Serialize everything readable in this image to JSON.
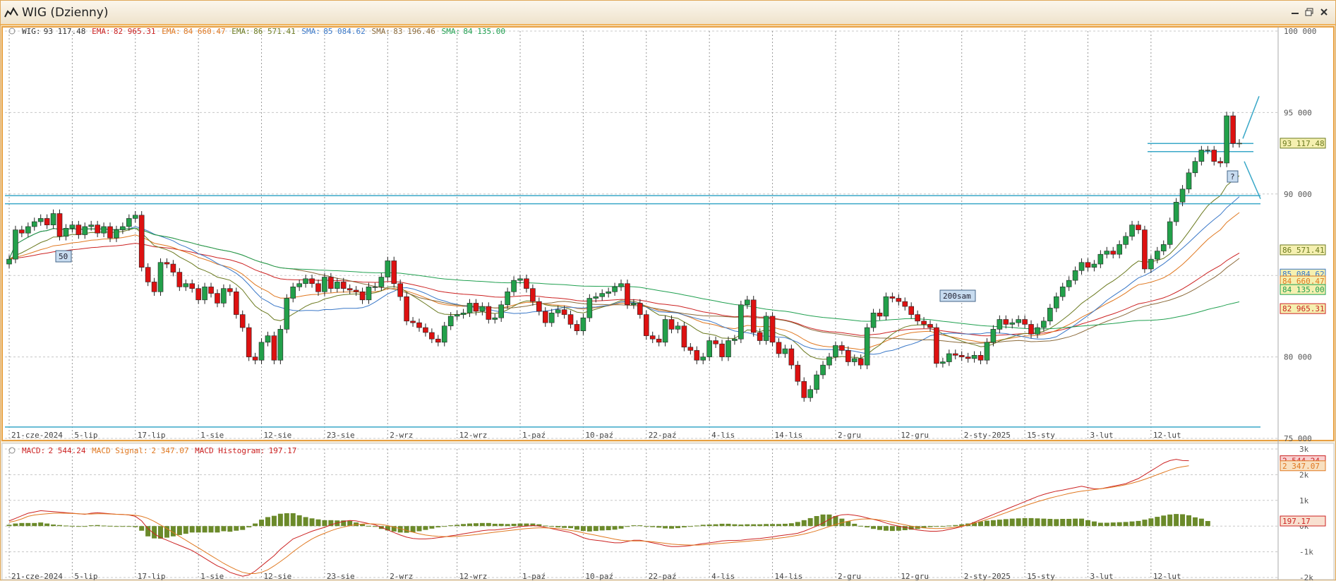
{
  "window": {
    "title": "WIG (Dzienny)",
    "buttons": [
      "minimize",
      "restore",
      "close"
    ]
  },
  "price_legend": [
    {
      "label": "WIG:",
      "value": "93 117.48",
      "color": "#333333"
    },
    {
      "label": "EMA:",
      "value": "82 965.31",
      "color": "#cc2222"
    },
    {
      "label": "EMA:",
      "value": "84 660.47",
      "color": "#e07820"
    },
    {
      "label": "EMA:",
      "value": "86 571.41",
      "color": "#6b7a20"
    },
    {
      "label": "SMA:",
      "value": "85 084.62",
      "color": "#3a78c8"
    },
    {
      "label": "SMA:",
      "value": "83 196.46",
      "color": "#8b6a3a"
    },
    {
      "label": "SMA:",
      "value": "84 135.00",
      "color": "#20a050"
    }
  ],
  "macd_legend": [
    {
      "label": "MACD:",
      "value": "2 544.24",
      "color": "#cc2222"
    },
    {
      "label": "MACD Signal:",
      "value": "2 347.07",
      "color": "#e07820"
    },
    {
      "label": "MACD Histogram:",
      "value": "197.17",
      "color": "#cc2222"
    }
  ],
  "annotations": {
    "sma50_label": "50",
    "sma200_label": "200sam",
    "question_label": "?"
  },
  "price_badges": [
    {
      "text": "93 117.48",
      "value": 93117.48,
      "color": "#6b7a20",
      "bg": "#f5f0b0"
    },
    {
      "text": "86 571.41",
      "value": 86571.41,
      "color": "#6b7a20",
      "bg": "#f5f0b0"
    },
    {
      "text": "85 084.62",
      "value": 85084.62,
      "color": "#3a78c8",
      "bg": "#f5f0b0"
    },
    {
      "text": "84 660.47",
      "value": 84660.47,
      "color": "#e07820",
      "bg": "#f5f0b0"
    },
    {
      "text": "84 135.00",
      "value": 84135.0,
      "color": "#20a050",
      "bg": "#f5f0b0"
    },
    {
      "text": "82 965.31",
      "value": 82965.31,
      "color": "#cc2222",
      "bg": "#f5f0b0"
    }
  ],
  "macd_badges": [
    {
      "text": "2 544.24",
      "value": 2544.24,
      "color": "#cc2222",
      "bg": "#f8d0d0"
    },
    {
      "text": "2 347.07",
      "value": 2347.07,
      "color": "#e07820",
      "bg": "#f8e0c0"
    },
    {
      "text": "197.17",
      "value": 197.17,
      "color": "#cc2222",
      "bg": "#f8e0d0"
    }
  ],
  "chart_data": {
    "type": "candlestick",
    "title": "WIG (Dzienny)",
    "x_tick_labels": [
      "21-cze-2024",
      "5-lip",
      "17-lip",
      "1-sie",
      "12-sie",
      "23-sie",
      "2-wrz",
      "12-wrz",
      "1-paź",
      "10-paź",
      "22-paź",
      "4-lis",
      "14-lis",
      "2-gru",
      "12-gru",
      "2-sty-2025",
      "15-sty",
      "3-lut",
      "12-lut"
    ],
    "price_axis": {
      "ylim": [
        75000,
        100000
      ],
      "ticks": [
        75000,
        80000,
        85000,
        90000,
        95000,
        100000
      ],
      "tick_labels": [
        "75 000",
        "80 000",
        "85 000",
        "90 000",
        "95 000",
        "100 000"
      ]
    },
    "macd_axis": {
      "ylim": [
        -2000,
        3000
      ],
      "ticks": [
        -2000,
        -1000,
        0,
        1000,
        2000,
        3000
      ],
      "tick_labels": [
        "-2k",
        "-1k",
        "0k",
        "1k",
        "2k",
        "3k"
      ]
    },
    "close": [
      86000,
      87800,
      87600,
      88000,
      88300,
      88500,
      88100,
      88800,
      87400,
      87900,
      88100,
      87500,
      88000,
      88100,
      87600,
      88000,
      87300,
      87800,
      88000,
      88500,
      88700,
      85500,
      84600,
      84000,
      85800,
      85700,
      85200,
      84300,
      84500,
      84200,
      83500,
      84300,
      83900,
      83300,
      84200,
      84000,
      82600,
      81800,
      80000,
      79800,
      80900,
      81300,
      79800,
      81700,
      83600,
      84300,
      84500,
      84800,
      84500,
      84000,
      84900,
      84200,
      84600,
      84200,
      84100,
      84000,
      83500,
      84300,
      84300,
      84900,
      85900,
      84500,
      83700,
      82200,
      82100,
      81800,
      81500,
      81100,
      80900,
      81900,
      82500,
      82600,
      82700,
      83300,
      82800,
      83100,
      82300,
      82400,
      83200,
      84000,
      84700,
      84800,
      84200,
      83400,
      82800,
      82100,
      82700,
      82900,
      82600,
      82000,
      81600,
      82400,
      83600,
      83700,
      83900,
      84000,
      84300,
      84500,
      83200,
      83300,
      82600,
      81300,
      81100,
      80900,
      82300,
      81700,
      81900,
      80600,
      80400,
      79800,
      80000,
      81000,
      80800,
      80000,
      81000,
      81100,
      83200,
      83500,
      81500,
      81000,
      82500,
      80900,
      80200,
      80500,
      79500,
      78500,
      77500,
      78000,
      78900,
      79500,
      80000,
      80700,
      80400,
      79700,
      79900,
      79500,
      81800,
      82700,
      82500,
      83700,
      83600,
      83400,
      83100,
      82600,
      82200,
      82000,
      81800,
      79600,
      79700,
      80200,
      80100,
      80000,
      79900,
      80100,
      79800,
      80900,
      81700,
      82300,
      82000,
      82100,
      82300,
      82000,
      81400,
      81800,
      82200,
      83000,
      83700,
      84300,
      84700,
      85300,
      85800,
      85500,
      85700,
      86300,
      86500,
      86300,
      86900,
      87400,
      88100,
      87800,
      85400,
      86000,
      86500,
      86900,
      88300,
      89500,
      90300,
      91300,
      92000,
      92700,
      92700,
      92000,
      91900,
      94800,
      93100,
      93117
    ],
    "macd": [
      200,
      300,
      400,
      500,
      550,
      600,
      580,
      560,
      540,
      520,
      500,
      480,
      460,
      500,
      520,
      500,
      480,
      460,
      450,
      430,
      380,
      200,
      -100,
      -300,
      -450,
      -550,
      -650,
      -750,
      -850,
      -950,
      -1100,
      -1250,
      -1400,
      -1550,
      -1650,
      -1800,
      -1880,
      -1950,
      -1900,
      -1750,
      -1550,
      -1350,
      -1150,
      -900,
      -700,
      -500,
      -400,
      -300,
      -200,
      -120,
      -50,
      50,
      120,
      180,
      220,
      200,
      150,
      100,
      50,
      -50,
      -150,
      -250,
      -350,
      -430,
      -480,
      -500,
      -500,
      -480,
      -450,
      -420,
      -380,
      -350,
      -300,
      -260,
      -220,
      -180,
      -150,
      -150,
      -120,
      -100,
      -60,
      -20,
      0,
      20,
      0,
      -50,
      -100,
      -150,
      -200,
      -250,
      -350,
      -450,
      -520,
      -550,
      -580,
      -620,
      -650,
      -650,
      -600,
      -550,
      -550,
      -600,
      -650,
      -700,
      -760,
      -800,
      -800,
      -780,
      -760,
      -720,
      -680,
      -650,
      -620,
      -580,
      -560,
      -560,
      -550,
      -520,
      -500,
      -480,
      -450,
      -420,
      -380,
      -350,
      -320,
      -280,
      -200,
      -100,
      0,
      120,
      260,
      380,
      440,
      450,
      420,
      380,
      320,
      260,
      200,
      120,
      50,
      0,
      -50,
      -100,
      -150,
      -180,
      -200,
      -200,
      -180,
      -130,
      -80,
      -20,
      50,
      150,
      250,
      350,
      450,
      550,
      650,
      750,
      850,
      950,
      1050,
      1150,
      1230,
      1300,
      1360,
      1400,
      1450,
      1500,
      1550,
      1500,
      1450,
      1450,
      1500,
      1550,
      1600,
      1650,
      1750,
      1850,
      2000,
      2150,
      2300,
      2450,
      2550,
      2600,
      2550,
      2544
    ],
    "macd_signal": [
      150,
      200,
      280,
      380,
      430,
      460,
      480,
      500,
      500,
      500,
      490,
      480,
      470,
      470,
      480,
      480,
      470,
      460,
      450,
      440,
      420,
      380,
      300,
      180,
      40,
      -100,
      -250,
      -400,
      -550,
      -700,
      -850,
      -1000,
      -1150,
      -1300,
      -1450,
      -1580,
      -1700,
      -1800,
      -1850,
      -1850,
      -1800,
      -1700,
      -1550,
      -1380,
      -1200,
      -1000,
      -820,
      -650,
      -500,
      -380,
      -280,
      -180,
      -100,
      -40,
      20,
      60,
      80,
      90,
      80,
      60,
      20,
      -40,
      -100,
      -170,
      -240,
      -300,
      -350,
      -380,
      -400,
      -410,
      -410,
      -400,
      -380,
      -360,
      -330,
      -300,
      -270,
      -240,
      -210,
      -180,
      -150,
      -120,
      -100,
      -80,
      -70,
      -70,
      -80,
      -100,
      -130,
      -170,
      -210,
      -260,
      -310,
      -360,
      -410,
      -460,
      -510,
      -550,
      -570,
      -580,
      -580,
      -590,
      -610,
      -640,
      -670,
      -700,
      -720,
      -730,
      -740,
      -740,
      -730,
      -710,
      -690,
      -670,
      -650,
      -630,
      -610,
      -590,
      -570,
      -550,
      -530,
      -500,
      -470,
      -440,
      -400,
      -360,
      -310,
      -250,
      -180,
      -100,
      -20,
      60,
      130,
      190,
      240,
      270,
      280,
      270,
      240,
      200,
      150,
      100,
      50,
      0,
      -40,
      -70,
      -90,
      -100,
      -90,
      -70,
      -40,
      0,
      50,
      110,
      180,
      260,
      340,
      430,
      520,
      610,
      700,
      790,
      870,
      950,
      1020,
      1090,
      1150,
      1210,
      1270,
      1320,
      1360,
      1390,
      1420,
      1450,
      1480,
      1520,
      1560,
      1610,
      1670,
      1740,
      1820,
      1910,
      2000,
      2090,
      2180,
      2260,
      2310,
      2347
    ],
    "macd_histogram": [
      50,
      100,
      120,
      120,
      120,
      140,
      100,
      60,
      40,
      20,
      10,
      0,
      -10,
      30,
      40,
      20,
      10,
      0,
      0,
      -10,
      -40,
      -180,
      -400,
      -480,
      -490,
      -450,
      -400,
      -350,
      -300,
      -250,
      -250,
      -250,
      -250,
      -250,
      -200,
      -220,
      -180,
      -150,
      -50,
      100,
      250,
      350,
      400,
      480,
      500,
      500,
      420,
      350,
      300,
      260,
      230,
      230,
      220,
      220,
      200,
      140,
      70,
      10,
      -30,
      -110,
      -170,
      -210,
      -250,
      -260,
      -240,
      -200,
      -150,
      -100,
      -50,
      -10,
      30,
      50,
      80,
      100,
      110,
      120,
      120,
      90,
      90,
      80,
      90,
      100,
      100,
      100,
      70,
      20,
      -20,
      -50,
      -70,
      -80,
      -140,
      -190,
      -210,
      -190,
      -170,
      -160,
      -140,
      -100,
      -30,
      30,
      30,
      -10,
      -40,
      -60,
      -90,
      -100,
      -80,
      -50,
      -20,
      20,
      50,
      60,
      70,
      90,
      90,
      70,
      60,
      70,
      70,
      70,
      80,
      80,
      80,
      90,
      110,
      160,
      230,
      310,
      390,
      450,
      450,
      390,
      290,
      190,
      90,
      10,
      -50,
      -110,
      -150,
      -180,
      -190,
      -180,
      -160,
      -140,
      -110,
      -80,
      -40,
      -20,
      0,
      20,
      40,
      70,
      100,
      150,
      180,
      210,
      230,
      250,
      270,
      290,
      300,
      310,
      310,
      300,
      290,
      280,
      270,
      280,
      280,
      290,
      290,
      230,
      180,
      130,
      130,
      140,
      150,
      160,
      180,
      200,
      250,
      300,
      360,
      410,
      450,
      470,
      460,
      420,
      340,
      290,
      197
    ],
    "overlays": [
      {
        "name": "EMA",
        "value": 82965.31,
        "color": "#cc2222"
      },
      {
        "name": "EMA",
        "value": 84660.47,
        "color": "#e07820"
      },
      {
        "name": "EMA",
        "value": 86571.41,
        "color": "#6b7a20"
      },
      {
        "name": "SMA",
        "value": 85084.62,
        "color": "#3a78c8"
      },
      {
        "name": "SMA",
        "value": 83196.46,
        "color": "#8b6a3a"
      },
      {
        "name": "SMA",
        "value": 84135.0,
        "color": "#20a050"
      }
    ],
    "horizontal_lines": [
      75700,
      89400,
      89900,
      92600,
      93100
    ],
    "colors": {
      "up": "#22a04a",
      "down": "#dd1111",
      "grid": "#c8c8c8",
      "cyan": "#3aa8c8",
      "bull": "#6b8a2a"
    }
  }
}
